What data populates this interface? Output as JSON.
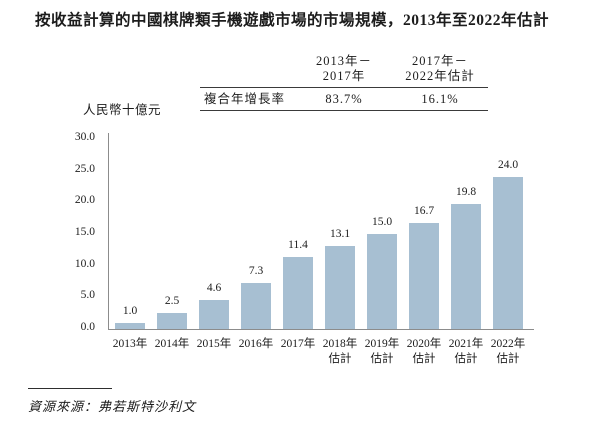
{
  "title": "按收益計算的中國棋牌類手機遊戲市場的市場規模，2013年至2022年估計",
  "cagr_table": {
    "row_label": "複合年增長率",
    "columns": [
      {
        "period_line1": "2013年－",
        "period_line2": "2017年",
        "value": "83.7%"
      },
      {
        "period_line1": "2017年－",
        "period_line2": "2022年估計",
        "value": "16.1%"
      }
    ]
  },
  "chart_data": {
    "type": "bar",
    "title": "按收益計算的中國棋牌類手機遊戲市場的市場規模，2013年至2022年估計",
    "unit_label": "人民幣十億元",
    "ylabel": "人民幣十億元",
    "xlabel": "",
    "categories": [
      {
        "label": "2013年",
        "sublabel": ""
      },
      {
        "label": "2014年",
        "sublabel": ""
      },
      {
        "label": "2015年",
        "sublabel": ""
      },
      {
        "label": "2016年",
        "sublabel": ""
      },
      {
        "label": "2017年",
        "sublabel": ""
      },
      {
        "label": "2018年",
        "sublabel": "估計"
      },
      {
        "label": "2019年",
        "sublabel": "估計"
      },
      {
        "label": "2020年",
        "sublabel": "估計"
      },
      {
        "label": "2021年",
        "sublabel": "估計"
      },
      {
        "label": "2022年",
        "sublabel": "估計"
      }
    ],
    "values": [
      1.0,
      2.5,
      4.6,
      7.3,
      11.4,
      13.1,
      15.0,
      16.7,
      19.8,
      24.0
    ],
    "ylim": [
      0,
      30
    ],
    "ytick_labels": [
      "0.0",
      "5.0",
      "10.0",
      "15.0",
      "20.0",
      "25.0",
      "30.0"
    ],
    "grid": false,
    "legend_position": "none",
    "bar_color": "#a7bfd2",
    "axis_color": "#8c8c8c"
  },
  "source": "資源來源：弗若斯特沙利文"
}
